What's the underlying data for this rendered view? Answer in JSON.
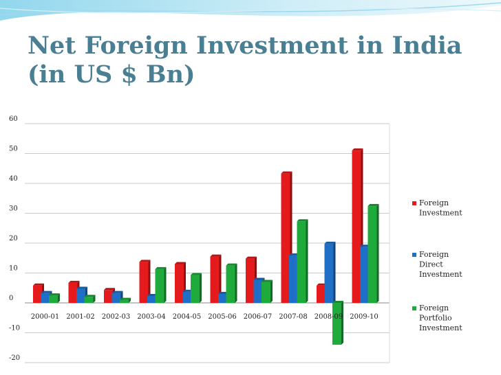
{
  "slide": {
    "title_line1": "Net Foreign Investment in India",
    "title_line2": "(in US $ Bn)"
  },
  "colors": {
    "title": "#4a7f93",
    "swoosh": "#bfe6f3",
    "foreign_investment": "#e41a1c",
    "foreign_direct_investment": "#1f6fc6",
    "foreign_portfolio_investment": "#1faa3c"
  },
  "chart_data": {
    "type": "bar",
    "title": "Net Foreign Investment in India (in US $ Bn)",
    "categories": [
      "2000-01",
      "2001-02",
      "2002-03",
      "2003-04",
      "2004-05",
      "2005-06",
      "2006-07",
      "2007-08",
      "2008-09",
      "2009-10"
    ],
    "series": [
      {
        "name": "Foreign Investment",
        "legend_lines": [
          "Foreign",
          "Investment"
        ],
        "color": "#e41a1c",
        "values": [
          5.8,
          6.7,
          4.3,
          13.7,
          13.0,
          15.5,
          14.8,
          43.3,
          5.8,
          51.0
        ]
      },
      {
        "name": "Foreign Direct Investment",
        "legend_lines": [
          "Foreign",
          "Direct",
          "Investment"
        ],
        "color": "#1f6fc6",
        "values": [
          3.3,
          4.7,
          3.3,
          2.3,
          3.7,
          3.0,
          7.7,
          15.9,
          19.8,
          18.8
        ]
      },
      {
        "name": "Foreign Portfolio Investment",
        "legend_lines": [
          "Foreign",
          "Portfolio",
          "Investment"
        ],
        "color": "#1faa3c",
        "values": [
          2.5,
          2.0,
          1.0,
          11.3,
          9.3,
          12.5,
          7.0,
          27.3,
          -14.0,
          32.4
        ]
      }
    ],
    "yticks": [
      -20,
      -10,
      0,
      10,
      20,
      30,
      40,
      50,
      60
    ],
    "ylim": [
      -20,
      60
    ],
    "grid": true,
    "legend_position": "right"
  }
}
